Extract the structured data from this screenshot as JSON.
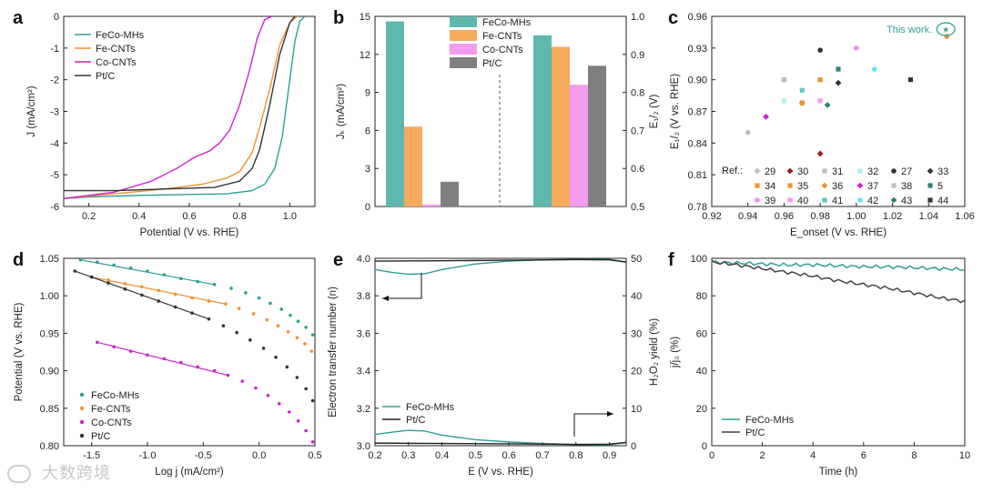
{
  "colors": {
    "feco_mhs": "#2e9f95",
    "fe_cnts": "#e8952e",
    "co_cnts": "#cc22cc",
    "pt_c": "#333333",
    "axis": "#222222"
  },
  "chart_data": [
    {
      "id": "a",
      "type": "line",
      "panel_letter": "a",
      "xlabel": "Potential (V vs. RHE)",
      "ylabel": "J (mA/cm²)",
      "xlim": [
        0.1,
        1.1
      ],
      "ylim": [
        -6,
        0
      ],
      "xticks": [
        "0.2",
        "0.4",
        "0.6",
        "0.8",
        "1.0"
      ],
      "yticks": [
        "0",
        "-1",
        "-2",
        "-3",
        "-4",
        "-5",
        "-6"
      ],
      "series": [
        {
          "name": "FeCo-MHs",
          "color": "#2e9f95",
          "x": [
            0.1,
            0.2,
            0.4,
            0.6,
            0.75,
            0.85,
            0.9,
            0.94,
            0.97,
            1.0,
            1.02,
            1.04,
            1.06
          ],
          "y": [
            -5.75,
            -5.7,
            -5.65,
            -5.62,
            -5.6,
            -5.5,
            -5.3,
            -4.8,
            -3.8,
            -2.0,
            -0.8,
            -0.15,
            0.0
          ]
        },
        {
          "name": "Fe-CNTs",
          "color": "#e8952e",
          "x": [
            0.1,
            0.3,
            0.5,
            0.65,
            0.75,
            0.8,
            0.85,
            0.88,
            0.92,
            0.96,
            1.0,
            1.03
          ],
          "y": [
            -5.75,
            -5.6,
            -5.45,
            -5.3,
            -5.1,
            -4.9,
            -4.3,
            -3.5,
            -2.3,
            -0.9,
            -0.2,
            0.0
          ]
        },
        {
          "name": "Co-CNTs",
          "color": "#cc22cc",
          "x": [
            0.1,
            0.3,
            0.45,
            0.55,
            0.62,
            0.68,
            0.72,
            0.76,
            0.8,
            0.84,
            0.87,
            0.9,
            0.93
          ],
          "y": [
            -5.75,
            -5.55,
            -5.2,
            -4.8,
            -4.45,
            -4.25,
            -4.0,
            -3.6,
            -2.8,
            -1.7,
            -0.7,
            -0.1,
            0.0
          ]
        },
        {
          "name": "Pt/C",
          "color": "#333333",
          "x": [
            0.1,
            0.3,
            0.5,
            0.7,
            0.8,
            0.85,
            0.88,
            0.92,
            0.96,
            1.0,
            1.02
          ],
          "y": [
            -5.5,
            -5.5,
            -5.45,
            -5.4,
            -5.2,
            -4.8,
            -4.2,
            -2.8,
            -1.2,
            -0.2,
            0.0
          ]
        }
      ]
    },
    {
      "id": "b",
      "type": "bar",
      "panel_letter": "b",
      "ylabel_left": "Jₖ (mA/cm²)",
      "ylabel_right": "E₁/₂ (V)",
      "ylim_left": [
        0,
        15
      ],
      "ylim_right": [
        0.5,
        1.0
      ],
      "yticks_left": [
        "0",
        "3",
        "6",
        "9",
        "12",
        "15"
      ],
      "yticks_right": [
        "0.5",
        "0.6",
        "0.7",
        "0.8",
        "0.9",
        "1.0"
      ],
      "series": [
        {
          "name": "FeCo-MHs",
          "color": "#5fb8ae",
          "jk": 14.6,
          "e_half": 0.95
        },
        {
          "name": "Fe-CNTs",
          "color": "#f6aa5c",
          "jk": 6.3,
          "e_half": 0.92
        },
        {
          "name": "Co-CNTs",
          "color": "#f59bf2",
          "jk": 0.15,
          "e_half": 0.82
        },
        {
          "name": "Pt/C",
          "color": "#7f7f7f",
          "jk": 1.95,
          "e_half": 0.87
        }
      ]
    },
    {
      "id": "c",
      "type": "scatter",
      "panel_letter": "c",
      "xlabel": "E_onset (V vs. RHE)",
      "ylabel": "E₁/₂ (V vs. RHE)",
      "xlim": [
        0.92,
        1.06
      ],
      "ylim": [
        0.78,
        0.96
      ],
      "xticks": [
        "0.92",
        "0.94",
        "0.96",
        "0.98",
        "1.00",
        "1.02",
        "1.04",
        "1.06"
      ],
      "yticks": [
        "0.78",
        "0.81",
        "0.84",
        "0.87",
        "0.90",
        "0.93",
        "0.96"
      ],
      "annotation": "This work.",
      "legend_title": "Ref.:",
      "points": [
        {
          "ref": "29",
          "x": 0.94,
          "y": 0.85,
          "color": "#bdbdbd",
          "shape": "diamond"
        },
        {
          "ref": "30",
          "x": 0.98,
          "y": 0.83,
          "color": "#a01a1a",
          "shape": "diamond"
        },
        {
          "ref": "31",
          "x": 0.96,
          "y": 0.9,
          "color": "#bdbdbd",
          "shape": "square"
        },
        {
          "ref": "32",
          "x": 0.96,
          "y": 0.88,
          "color": "#aef0f0",
          "shape": "square"
        },
        {
          "ref": "27",
          "x": 0.98,
          "y": 0.928,
          "color": "#333333",
          "shape": "circle"
        },
        {
          "ref": "33",
          "x": 0.99,
          "y": 0.897,
          "color": "#333333",
          "shape": "diamond"
        },
        {
          "ref": "34",
          "x": 0.98,
          "y": 0.9,
          "color": "#e8952e",
          "shape": "square"
        },
        {
          "ref": "35",
          "x": 0.97,
          "y": 0.878,
          "color": "#e8952e",
          "shape": "square"
        },
        {
          "ref": "36",
          "x": 0.97,
          "y": 0.878,
          "color": "#e8952e",
          "shape": "diamond"
        },
        {
          "ref": "37",
          "x": 0.95,
          "y": 0.865,
          "color": "#cc22cc",
          "shape": "diamond"
        },
        {
          "ref": "38",
          "x": 0.96,
          "y": 0.9,
          "color": "#bdbdbd",
          "shape": "square"
        },
        {
          "ref": "5",
          "x": 0.99,
          "y": 0.91,
          "color": "#2e7f78",
          "shape": "square"
        },
        {
          "ref": "39",
          "x": 1.0,
          "y": 0.93,
          "color": "#f08cf0",
          "shape": "circle"
        },
        {
          "ref": "40",
          "x": 0.98,
          "y": 0.88,
          "color": "#f59bf2",
          "shape": "square"
        },
        {
          "ref": "41",
          "x": 0.97,
          "y": 0.89,
          "color": "#5fc8c0",
          "shape": "square"
        },
        {
          "ref": "42",
          "x": 1.01,
          "y": 0.91,
          "color": "#5fe8e8",
          "shape": "circle"
        },
        {
          "ref": "43",
          "x": 0.984,
          "y": 0.876,
          "color": "#2e7f78",
          "shape": "diamond"
        },
        {
          "ref": "44",
          "x": 1.03,
          "y": 0.9,
          "color": "#333333",
          "shape": "square"
        },
        {
          "ref": "This work.",
          "x": 1.05,
          "y": 0.941,
          "color": "#e8952e",
          "shape": "circle"
        }
      ]
    },
    {
      "id": "d",
      "type": "scatter",
      "panel_letter": "d",
      "xlabel": "Log j (mA/cm²)",
      "ylabel": "Potential (V vs. RHE)",
      "xlim": [
        -1.75,
        0.5
      ],
      "ylim": [
        0.8,
        1.05
      ],
      "xticks": [
        "-1.5",
        "-1.0",
        "-0.5",
        "0.0",
        "0.5"
      ],
      "yticks": [
        "0.80",
        "0.85",
        "0.90",
        "0.95",
        "1.00",
        "1.05"
      ],
      "series": [
        {
          "name": "FeCo-MHs",
          "color": "#2e9f95",
          "x": [
            -1.6,
            -1.45,
            -1.3,
            -1.15,
            -1.0,
            -0.85,
            -0.7,
            -0.55,
            -0.4,
            -0.25,
            -0.12,
            0.0,
            0.1,
            0.2,
            0.28,
            0.35,
            0.42,
            0.48
          ],
          "y": [
            1.048,
            1.045,
            1.041,
            1.037,
            1.033,
            1.028,
            1.023,
            1.019,
            1.015,
            1.01,
            1.004,
            0.997,
            0.99,
            0.982,
            0.974,
            0.966,
            0.958,
            0.948
          ]
        },
        {
          "name": "Fe-CNTs",
          "color": "#e8952e",
          "x": [
            -1.5,
            -1.35,
            -1.2,
            -1.05,
            -0.9,
            -0.75,
            -0.6,
            -0.45,
            -0.3,
            -0.18,
            -0.05,
            0.07,
            0.17,
            0.26,
            0.34,
            0.41,
            0.47
          ],
          "y": [
            1.025,
            1.021,
            1.016,
            1.012,
            1.007,
            1.002,
            0.997,
            0.993,
            0.989,
            0.983,
            0.976,
            0.968,
            0.96,
            0.952,
            0.944,
            0.936,
            0.926
          ]
        },
        {
          "name": "Co-CNTs",
          "color": "#cc22cc",
          "x": [
            -1.45,
            -1.3,
            -1.15,
            -1.0,
            -0.85,
            -0.7,
            -0.55,
            -0.4,
            -0.28,
            -0.15,
            -0.03,
            0.08,
            0.18,
            0.27,
            0.35,
            0.42,
            0.48
          ],
          "y": [
            0.938,
            0.932,
            0.926,
            0.921,
            0.916,
            0.911,
            0.905,
            0.9,
            0.894,
            0.886,
            0.877,
            0.867,
            0.856,
            0.845,
            0.833,
            0.82,
            0.805
          ]
        },
        {
          "name": "Pt/C",
          "color": "#333333",
          "x": [
            -1.65,
            -1.5,
            -1.35,
            -1.2,
            -1.05,
            -0.9,
            -0.75,
            -0.6,
            -0.45,
            -0.32,
            -0.2,
            -0.08,
            0.04,
            0.15,
            0.25,
            0.34,
            0.42,
            0.48
          ],
          "y": [
            1.033,
            1.025,
            1.017,
            1.009,
            1.001,
            0.993,
            0.985,
            0.977,
            0.969,
            0.96,
            0.951,
            0.941,
            0.93,
            0.918,
            0.905,
            0.891,
            0.876,
            0.86
          ]
        }
      ]
    },
    {
      "id": "e",
      "type": "line",
      "panel_letter": "e",
      "xlabel": "E (V vs. RHE)",
      "ylabel_left": "Electron transfer number (n)",
      "ylabel_right": "H₂O₂ yield (%)",
      "xlim": [
        0.2,
        0.95
      ],
      "ylim_left": [
        3.0,
        4.0
      ],
      "ylim_right": [
        0,
        50
      ],
      "xticks": [
        "0.2",
        "0.3",
        "0.4",
        "0.5",
        "0.6",
        "0.7",
        "0.8",
        "0.9"
      ],
      "yticks_left": [
        "3.0",
        "3.2",
        "3.4",
        "3.6",
        "3.8",
        "4.0"
      ],
      "yticks_right": [
        "0",
        "10",
        "20",
        "30",
        "40",
        "50"
      ],
      "series": [
        {
          "name": "FeCo-MHs",
          "color": "#2e9f95",
          "axis": "left",
          "x": [
            0.2,
            0.25,
            0.3,
            0.35,
            0.4,
            0.5,
            0.6,
            0.7,
            0.8,
            0.9,
            0.95
          ],
          "y": [
            3.94,
            3.925,
            3.915,
            3.918,
            3.94,
            3.97,
            3.985,
            3.992,
            3.994,
            3.994,
            3.98
          ]
        },
        {
          "name": "Pt/C",
          "color": "#222222",
          "axis": "left",
          "x": [
            0.2,
            0.4,
            0.6,
            0.8,
            0.9,
            0.95
          ],
          "y": [
            3.985,
            3.987,
            3.99,
            3.993,
            3.992,
            3.98
          ]
        },
        {
          "name": "FeCo-MHs yield",
          "color": "#2e9f95",
          "axis": "right",
          "x": [
            0.2,
            0.25,
            0.3,
            0.35,
            0.4,
            0.5,
            0.6,
            0.7,
            0.8,
            0.9,
            0.95
          ],
          "y": [
            3.0,
            3.6,
            4.1,
            3.9,
            2.8,
            1.6,
            1.0,
            0.6,
            0.3,
            0.3,
            0.8
          ]
        },
        {
          "name": "Pt/C yield",
          "color": "#222222",
          "axis": "right",
          "x": [
            0.2,
            0.4,
            0.6,
            0.8,
            0.9,
            0.95
          ],
          "y": [
            0.7,
            0.6,
            0.5,
            0.35,
            0.4,
            0.9
          ]
        }
      ]
    },
    {
      "id": "f",
      "type": "line",
      "panel_letter": "f",
      "xlabel": "Time (h)",
      "ylabel": "j/j₀ (%)",
      "xlim": [
        0,
        10
      ],
      "ylim": [
        0,
        100
      ],
      "xticks": [
        "0",
        "2",
        "4",
        "6",
        "8",
        "10"
      ],
      "yticks": [
        "0",
        "20",
        "40",
        "60",
        "80",
        "100"
      ],
      "series": [
        {
          "name": "FeCo-MHs",
          "color": "#2e9f95",
          "x": [
            0,
            1,
            2,
            3,
            4,
            5,
            6,
            7,
            8,
            9,
            10
          ],
          "y": [
            98,
            97.5,
            97,
            96.5,
            96.5,
            96,
            95.5,
            95.5,
            95,
            94.5,
            94
          ]
        },
        {
          "name": "Pt/C",
          "color": "#444444",
          "x": [
            0,
            1,
            2,
            3,
            4,
            5,
            6,
            7,
            8,
            9,
            10
          ],
          "y": [
            98,
            96.5,
            94.5,
            92.5,
            90.5,
            88,
            86,
            84,
            81.5,
            79,
            77
          ]
        }
      ]
    }
  ],
  "watermark": "大数跨境"
}
